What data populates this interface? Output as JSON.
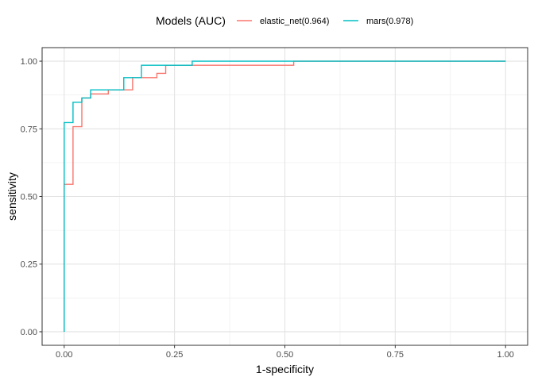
{
  "chart_data": {
    "type": "line",
    "title": "",
    "xlabel": "1-specificity",
    "ylabel": "sensitivity",
    "xlim": [
      -0.05,
      1.05
    ],
    "ylim": [
      -0.05,
      1.05
    ],
    "x_ticks": [
      0.0,
      0.25,
      0.5,
      0.75,
      1.0
    ],
    "x_tick_labels": [
      "0.00",
      "0.25",
      "0.50",
      "0.75",
      "1.00"
    ],
    "y_ticks": [
      0.0,
      0.25,
      0.5,
      0.75,
      1.0
    ],
    "y_tick_labels": [
      "0.00",
      "0.25",
      "0.50",
      "0.75",
      "1.00"
    ],
    "grid": true,
    "legend": {
      "title": "Models (AUC)",
      "position": "top"
    },
    "series": [
      {
        "name": "elastic_net(0.964)",
        "color": "#F8766D",
        "step": true,
        "x": [
          0.0,
          0.0,
          0.02,
          0.02,
          0.04,
          0.04,
          0.06,
          0.06,
          0.1,
          0.1,
          0.155,
          0.155,
          0.21,
          0.21,
          0.23,
          0.23,
          0.29,
          0.29,
          0.52,
          0.52,
          1.0
        ],
        "y": [
          0.0,
          0.545,
          0.545,
          0.758,
          0.758,
          0.864,
          0.864,
          0.879,
          0.879,
          0.894,
          0.894,
          0.939,
          0.939,
          0.955,
          0.955,
          0.985,
          0.985,
          0.985,
          0.985,
          1.0,
          1.0
        ]
      },
      {
        "name": "mars(0.978)",
        "color": "#00BFC4",
        "step": true,
        "x": [
          0.0,
          0.0,
          0.02,
          0.02,
          0.04,
          0.04,
          0.06,
          0.06,
          0.135,
          0.135,
          0.175,
          0.175,
          0.29,
          0.29,
          1.0
        ],
        "y": [
          0.0,
          0.773,
          0.773,
          0.848,
          0.848,
          0.864,
          0.864,
          0.894,
          0.894,
          0.939,
          0.939,
          0.985,
          0.985,
          1.0,
          1.0
        ]
      }
    ]
  }
}
